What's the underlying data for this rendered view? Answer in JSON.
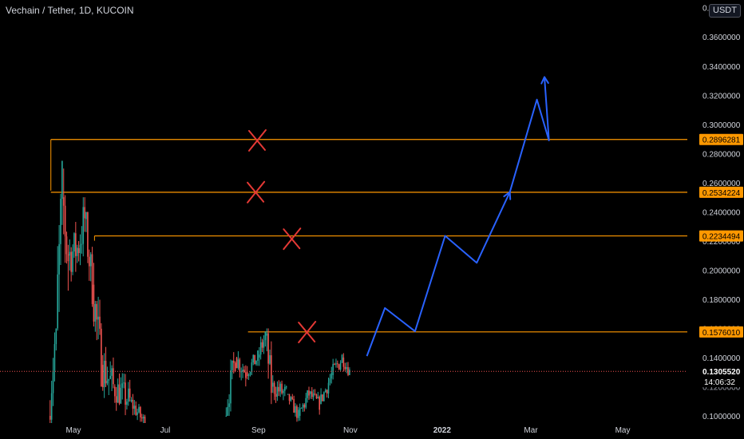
{
  "header": {
    "symbol_title": "Vechain / Tether, 1D, KUCOIN",
    "currency_label": "USDT"
  },
  "chart_data": {
    "type": "candlestick",
    "title": "Vechain / Tether, 1D, KUCOIN",
    "y_axis": {
      "scale": "linear",
      "range": [
        0.098,
        0.385
      ],
      "tick_values": [
        0.1,
        0.12,
        0.14,
        0.16,
        0.18,
        0.2,
        0.22,
        0.24,
        0.26,
        0.28,
        0.3,
        0.32,
        0.34,
        0.36
      ],
      "tick_labels": [
        "0.1000000",
        "0.1200000",
        "0.1400000",
        "0.1600000",
        "0.1800000",
        "0.2000000",
        "0.2200000",
        "0.2400000",
        "0.2600000",
        "0.2800000",
        "0.3000000",
        "0.3200000",
        "0.3400000",
        "0.3600000"
      ],
      "top_label_partial": "0.3800000"
    },
    "x_axis": {
      "range": [
        "2021-04-14",
        "2022-06-08"
      ],
      "ticks": [
        {
          "date": "2021-05-01",
          "label": "May"
        },
        {
          "date": "2021-07-01",
          "label": "Jul"
        },
        {
          "date": "2021-09-01",
          "label": "Sep"
        },
        {
          "date": "2021-11-01",
          "label": "Nov"
        },
        {
          "date": "2022-01-01",
          "label": "2022"
        },
        {
          "date": "2022-03-01",
          "label": "Mar"
        },
        {
          "date": "2022-05-01",
          "label": "May"
        }
      ]
    },
    "candles": [
      {
        "start": "2021-04-15",
        "end": "2021-04-20",
        "low": 0.095,
        "high": 0.16,
        "trend": [
          0.1,
          0.16
        ]
      },
      {
        "start": "2021-04-20",
        "end": "2021-04-24",
        "low": 0.12,
        "high": 0.275,
        "trend": [
          0.16,
          0.25
        ]
      },
      {
        "start": "2021-04-24",
        "end": "2021-04-28",
        "low": 0.16,
        "high": 0.28,
        "trend": [
          0.25,
          0.21
        ]
      },
      {
        "start": "2021-04-28",
        "end": "2021-05-04",
        "low": 0.17,
        "high": 0.235,
        "trend": [
          0.21,
          0.215
        ]
      },
      {
        "start": "2021-05-04",
        "end": "2021-05-09",
        "low": 0.175,
        "high": 0.25,
        "trend": [
          0.215,
          0.235
        ]
      },
      {
        "start": "2021-05-09",
        "end": "2021-05-14",
        "low": 0.17,
        "high": 0.24,
        "trend": [
          0.235,
          0.19
        ]
      },
      {
        "start": "2021-05-14",
        "end": "2021-05-20",
        "low": 0.12,
        "high": 0.205,
        "trend": [
          0.19,
          0.135
        ]
      },
      {
        "start": "2021-05-20",
        "end": "2021-05-28",
        "low": 0.09,
        "high": 0.15,
        "trend": [
          0.135,
          0.12
        ]
      },
      {
        "start": "2021-05-28",
        "end": "2021-06-08",
        "low": 0.09,
        "high": 0.135,
        "trend": [
          0.12,
          0.11
        ]
      },
      {
        "start": "2021-06-08",
        "end": "2021-06-18",
        "low": 0.09,
        "high": 0.115,
        "trend": [
          0.11,
          0.095
        ]
      },
      {
        "start": "2021-08-10",
        "end": "2021-08-17",
        "low": 0.1,
        "high": 0.145,
        "trend": [
          0.1,
          0.14
        ]
      },
      {
        "start": "2021-08-17",
        "end": "2021-08-24",
        "low": 0.115,
        "high": 0.148,
        "trend": [
          0.14,
          0.13
        ]
      },
      {
        "start": "2021-08-24",
        "end": "2021-09-01",
        "low": 0.12,
        "high": 0.145,
        "trend": [
          0.13,
          0.14
        ]
      },
      {
        "start": "2021-09-01",
        "end": "2021-09-06",
        "low": 0.125,
        "high": 0.158,
        "trend": [
          0.14,
          0.155
        ]
      },
      {
        "start": "2021-09-06",
        "end": "2021-09-10",
        "low": 0.1,
        "high": 0.16,
        "trend": [
          0.155,
          0.12
        ]
      },
      {
        "start": "2021-09-10",
        "end": "2021-09-20",
        "low": 0.1,
        "high": 0.13,
        "trend": [
          0.12,
          0.115
        ]
      },
      {
        "start": "2021-09-20",
        "end": "2021-09-28",
        "low": 0.095,
        "high": 0.115,
        "trend": [
          0.115,
          0.1
        ]
      },
      {
        "start": "2021-09-28",
        "end": "2021-10-05",
        "low": 0.095,
        "high": 0.12,
        "trend": [
          0.1,
          0.115
        ]
      },
      {
        "start": "2021-10-05",
        "end": "2021-10-12",
        "low": 0.1,
        "high": 0.12,
        "trend": [
          0.115,
          0.108
        ]
      },
      {
        "start": "2021-10-12",
        "end": "2021-10-20",
        "low": 0.11,
        "high": 0.135,
        "trend": [
          0.108,
          0.128
        ]
      },
      {
        "start": "2021-10-20",
        "end": "2021-10-27",
        "low": 0.12,
        "high": 0.148,
        "trend": [
          0.128,
          0.14
        ]
      },
      {
        "start": "2021-10-27",
        "end": "2021-11-01",
        "low": 0.125,
        "high": 0.145,
        "trend": [
          0.14,
          0.1305
        ]
      }
    ],
    "horizontal_levels": [
      {
        "value": 0.2896281,
        "label": "0.2896281",
        "start": "2021-04-16"
      },
      {
        "value": 0.2534224,
        "label": "0.2534224",
        "start": "2021-04-16"
      },
      {
        "value": 0.2234494,
        "label": "0.2234494",
        "start": "2021-05-15"
      },
      {
        "value": 0.157601,
        "label": "0.1576010",
        "start": "2021-08-25"
      }
    ],
    "level_marker_dates": [
      [
        "2021-04-16",
        "2021-04-16"
      ],
      [
        "2021-05-15",
        "2021-05-15"
      ]
    ],
    "cross_marks": [
      {
        "date": "2021-08-31",
        "value": 0.289,
        "near_level": "0.2896281"
      },
      {
        "date": "2021-08-30",
        "value": 0.2535,
        "near_level": "0.2534224"
      },
      {
        "date": "2021-09-23",
        "value": 0.2215,
        "near_level": "0.2234494"
      },
      {
        "date": "2021-10-03",
        "value": 0.1575,
        "near_level": "0.1576010"
      }
    ],
    "projection_path": {
      "color": "#2962ff",
      "points": [
        [
          "2021-11-12",
          0.141
        ],
        [
          "2021-11-24",
          0.174
        ],
        [
          "2021-12-14",
          0.158
        ],
        [
          "2022-01-03",
          0.2235
        ],
        [
          "2022-01-24",
          0.205
        ],
        [
          "2022-02-15",
          0.2535
        ],
        [
          "2022-03-05",
          0.317
        ],
        [
          "2022-03-13",
          0.289
        ],
        [
          "2022-03-10",
          0.3325
        ]
      ]
    },
    "current_price": {
      "value": 0.130552,
      "label": "0.1305520",
      "countdown": "14:06:32"
    },
    "partial_tick_labels": [
      "0.1200000"
    ],
    "colors": {
      "background": "#000000",
      "up_candle": "#26a69a",
      "down_candle": "#ef5350",
      "level_line": "#ff9800",
      "cross_mark": "#e53935",
      "projection": "#2962ff",
      "current_price_line": "#ef5350",
      "axis_text": "#d1d4dc"
    }
  }
}
